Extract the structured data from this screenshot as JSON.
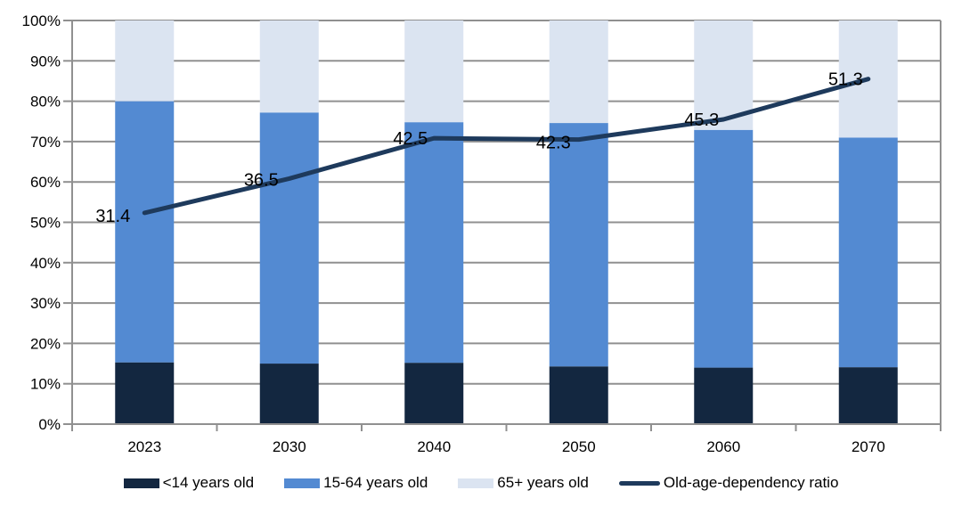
{
  "chart_data": {
    "type": "bar",
    "subtype": "stacked-column-with-line-overlay",
    "title": "",
    "xlabel": "",
    "ylabel": "",
    "categories": [
      "2023",
      "2030",
      "2040",
      "2050",
      "2060",
      "2070"
    ],
    "series": [
      {
        "name": "<14 years old",
        "kind": "bar",
        "color": "#132740",
        "values": [
          15.3,
          15.0,
          15.2,
          14.3,
          14.0,
          14.1
        ]
      },
      {
        "name": "15-64 years old",
        "kind": "bar",
        "color": "#538ad2",
        "values": [
          64.7,
          62.2,
          59.6,
          60.3,
          58.9,
          56.9
        ]
      },
      {
        "name": "65+ years old",
        "kind": "bar",
        "color": "#dbe4f1",
        "values": [
          20.0,
          22.8,
          25.2,
          25.4,
          27.1,
          29.0
        ]
      },
      {
        "name": "Old-age-dependency ratio",
        "kind": "line",
        "color": "#1e3a5c",
        "values": [
          31.4,
          36.5,
          42.5,
          42.3,
          45.3,
          51.3
        ],
        "data_labels": [
          "31.4",
          "36.5",
          "42.5",
          "42.3",
          "45.3",
          "51.3"
        ],
        "secondary_axis": {
          "min": 0,
          "max": 60,
          "visible": false
        }
      }
    ],
    "ylim": [
      0,
      100
    ],
    "ytick_step": 10,
    "y_tick_labels": [
      "0%",
      "10%",
      "20%",
      "30%",
      "40%",
      "50%",
      "60%",
      "70%",
      "80%",
      "90%",
      "100%"
    ],
    "grid": true,
    "grid_color": "#909090",
    "legend_position": "bottom",
    "background_color": "#ffffff",
    "stack_total": 100
  }
}
